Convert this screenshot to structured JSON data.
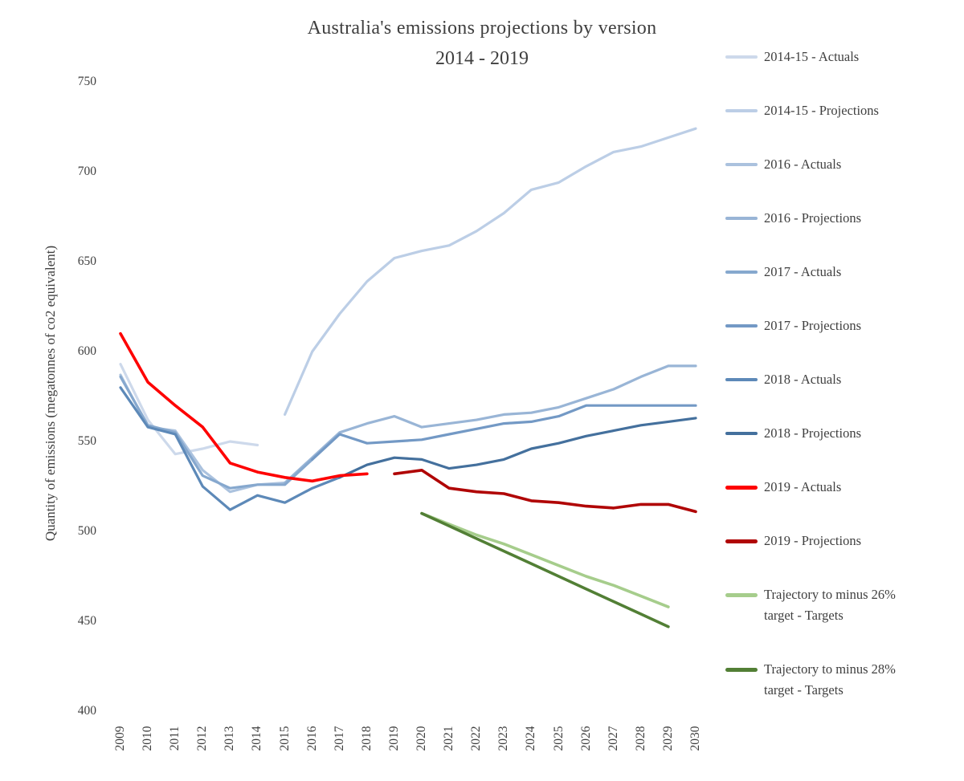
{
  "title": {
    "line1": "Australia's emissions projections by version",
    "line2": "2014 - 2019"
  },
  "axes": {
    "y_label": "Quantity of emissions (megatonnes of co2 equivalent)",
    "y_ticks": [
      750,
      700,
      650,
      600,
      550,
      500,
      450,
      400
    ],
    "x_ticks": [
      2009,
      2010,
      2011,
      2012,
      2013,
      2014,
      2015,
      2016,
      2017,
      2018,
      2019,
      2020,
      2021,
      2022,
      2023,
      2024,
      2025,
      2026,
      2027,
      2028,
      2029,
      2030
    ]
  },
  "chart_data": {
    "type": "line",
    "title": "Australia's emissions projections by version 2014 - 2019",
    "xlabel": "",
    "ylabel": "Quantity of emissions (megatonnes of co2 equivalent)",
    "xlim": [
      2009,
      2030
    ],
    "ylim": [
      400,
      750
    ],
    "grid": false,
    "legend_position": "right",
    "text_color": "#3f3f3f",
    "series": [
      {
        "name": "2014-15 - Actuals",
        "color": "#cdd9eb",
        "width": 3.2,
        "x": [
          2009,
          2010,
          2011,
          2012,
          2013,
          2014
        ],
        "y": [
          593,
          562,
          543,
          546,
          550,
          548
        ]
      },
      {
        "name": "2014-15 - Projections",
        "color": "#bccee6",
        "width": 3.2,
        "x": [
          2015,
          2016,
          2017,
          2018,
          2019,
          2020,
          2021,
          2022,
          2023,
          2024,
          2025,
          2026,
          2027,
          2028,
          2029,
          2030
        ],
        "y": [
          565,
          600,
          621,
          639,
          652,
          656,
          659,
          667,
          677,
          690,
          694,
          703,
          711,
          714,
          719,
          724
        ]
      },
      {
        "name": "2016 - Actuals",
        "color": "#abc2de",
        "width": 3.2,
        "x": [
          2009,
          2010,
          2011,
          2012,
          2013,
          2014,
          2015
        ],
        "y": [
          587,
          558,
          556,
          534,
          522,
          526,
          527
        ]
      },
      {
        "name": "2016 - Projections",
        "color": "#99b5d6",
        "width": 3.2,
        "x": [
          2015,
          2016,
          2017,
          2018,
          2019,
          2020,
          2021,
          2022,
          2023,
          2024,
          2025,
          2026,
          2027,
          2028,
          2029,
          2030
        ],
        "y": [
          527,
          541,
          555,
          560,
          564,
          558,
          560,
          562,
          565,
          566,
          569,
          574,
          579,
          586,
          592,
          592
        ]
      },
      {
        "name": "2017 - Actuals",
        "color": "#86a8ce",
        "width": 3.2,
        "x": [
          2009,
          2010,
          2011,
          2012,
          2013,
          2014,
          2015,
          2016
        ],
        "y": [
          586,
          559,
          555,
          531,
          524,
          526,
          526,
          540
        ]
      },
      {
        "name": "2017 - Projections",
        "color": "#7399c5",
        "width": 3.2,
        "x": [
          2016,
          2017,
          2018,
          2019,
          2020,
          2021,
          2022,
          2023,
          2024,
          2025,
          2026,
          2027,
          2028,
          2029,
          2030
        ],
        "y": [
          540,
          554,
          549,
          550,
          551,
          554,
          557,
          560,
          561,
          564,
          570,
          570,
          570,
          570,
          570
        ]
      },
      {
        "name": "2018 - Actuals",
        "color": "#5d89b8",
        "width": 3.2,
        "x": [
          2009,
          2010,
          2011,
          2012,
          2013,
          2014,
          2015,
          2016,
          2017
        ],
        "y": [
          580,
          558,
          554,
          525,
          512,
          520,
          516,
          524,
          530
        ]
      },
      {
        "name": "2018 - Projections",
        "color": "#44709d",
        "width": 3.2,
        "x": [
          2017,
          2018,
          2019,
          2020,
          2021,
          2022,
          2023,
          2024,
          2025,
          2026,
          2027,
          2028,
          2029,
          2030
        ],
        "y": [
          530,
          537,
          541,
          540,
          535,
          537,
          540,
          546,
          549,
          553,
          556,
          559,
          561,
          563
        ]
      },
      {
        "name": "2019 - Actuals",
        "color": "#fe0000",
        "width": 3.6,
        "x": [
          2009,
          2010,
          2011,
          2012,
          2013,
          2014,
          2015,
          2016,
          2017,
          2018
        ],
        "y": [
          610,
          583,
          570,
          558,
          538,
          533,
          530,
          528,
          531,
          532
        ]
      },
      {
        "name": "2019 - Projections",
        "color": "#b00505",
        "width": 3.6,
        "x": [
          2019,
          2020,
          2021,
          2022,
          2023,
          2024,
          2025,
          2026,
          2027,
          2028,
          2029,
          2030
        ],
        "y": [
          532,
          534,
          524,
          522,
          521,
          517,
          516,
          514,
          513,
          515,
          515,
          511
        ]
      },
      {
        "name": "Trajectory to minus 26% target - Targets",
        "color": "#a6cd8c",
        "width": 3.6,
        "x": [
          2020,
          2021,
          2022,
          2023,
          2024,
          2025,
          2026,
          2027,
          2028,
          2029
        ],
        "y": [
          510,
          504,
          498,
          493,
          487,
          481,
          475,
          470,
          464,
          458
        ]
      },
      {
        "name": "Trajectory to minus 28% target - Targets",
        "color": "#527f35",
        "width": 3.6,
        "x": [
          2020,
          2021,
          2022,
          2023,
          2024,
          2025,
          2026,
          2027,
          2028,
          2029
        ],
        "y": [
          510,
          503,
          496,
          489,
          482,
          475,
          468,
          461,
          454,
          447
        ]
      }
    ]
  }
}
